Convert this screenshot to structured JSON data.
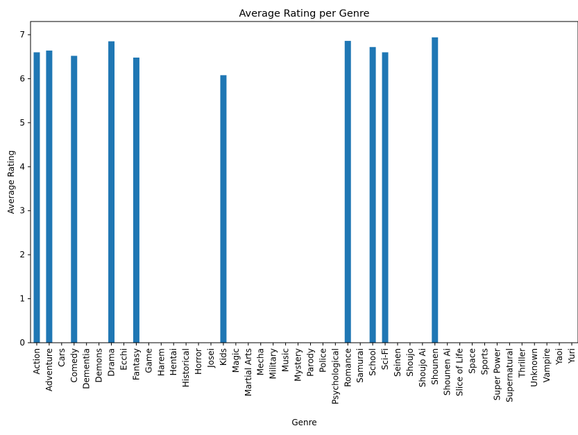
{
  "chart_data": {
    "type": "bar",
    "title": "Average Rating per Genre",
    "xlabel": "Genre",
    "ylabel": "Average Rating",
    "ylim": [
      0,
      7.3
    ],
    "yticks": [
      "0",
      "1",
      "2",
      "3",
      "4",
      "5",
      "6",
      "7"
    ],
    "grid": false,
    "bar_color": "#1f77b4",
    "categories": [
      "Action",
      "Adventure",
      "Cars",
      "Comedy",
      "Dementia",
      "Demons",
      "Drama",
      "Ecchi",
      "Fantasy",
      "Game",
      "Harem",
      "Hentai",
      "Historical",
      "Horror",
      "Josei",
      "Kids",
      "Magic",
      "Martial Arts",
      "Mecha",
      "Military",
      "Music",
      "Mystery",
      "Parody",
      "Police",
      "Psychological",
      "Romance",
      "Samurai",
      "School",
      "Sci-Fi",
      "Seinen",
      "Shoujo",
      "Shoujo Ai",
      "Shounen",
      "Shounen Ai",
      "Slice of Life",
      "Space",
      "Sports",
      "Super Power",
      "Supernatural",
      "Thriller",
      "Unknown",
      "Vampire",
      "Yaoi",
      "Yuri"
    ],
    "values": [
      6.6,
      6.64,
      0,
      6.52,
      0,
      0,
      6.85,
      0,
      6.48,
      0,
      0,
      0,
      0,
      0,
      0,
      6.08,
      0,
      0,
      0,
      0,
      0,
      0,
      0,
      0,
      0,
      6.86,
      0,
      6.72,
      6.6,
      0,
      0,
      0,
      6.94,
      0,
      0,
      0,
      0,
      0,
      0,
      0,
      0,
      0,
      0,
      0
    ]
  }
}
